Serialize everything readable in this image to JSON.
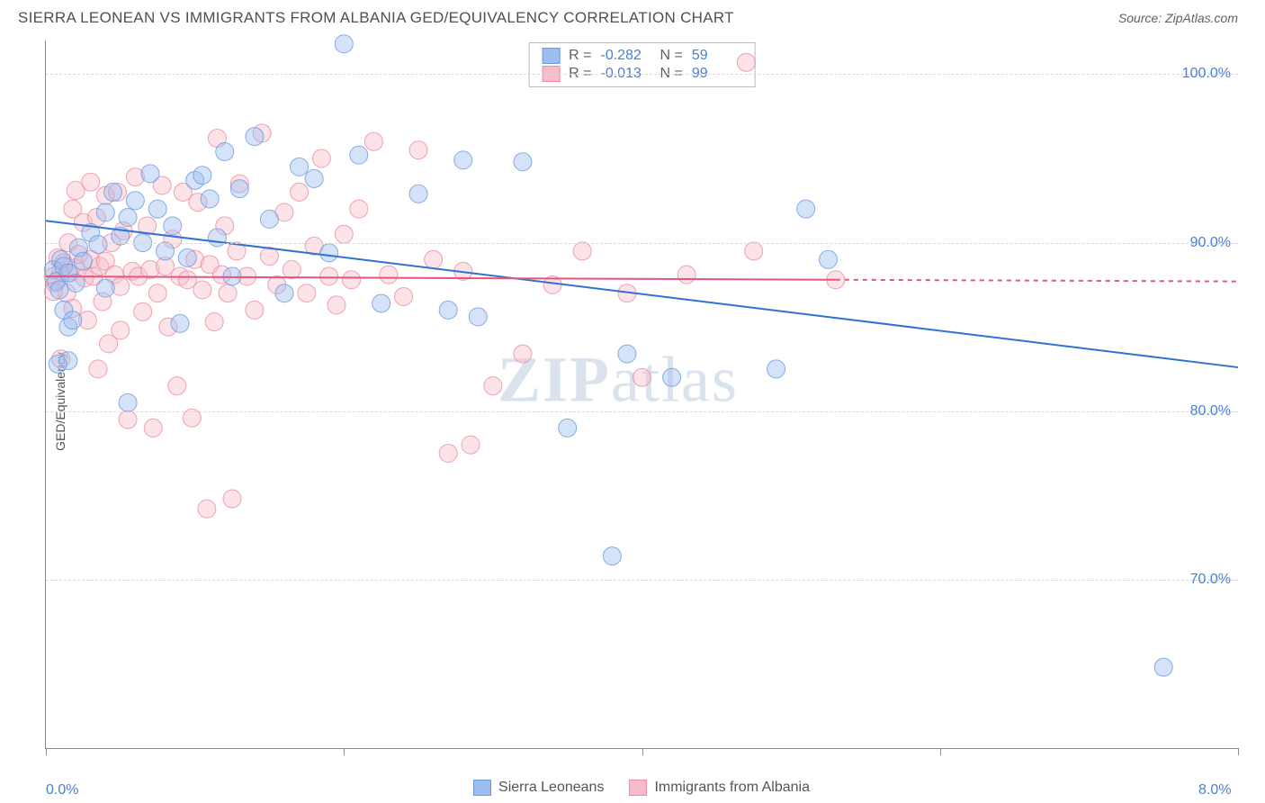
{
  "title": "SIERRA LEONEAN VS IMMIGRANTS FROM ALBANIA GED/EQUIVALENCY CORRELATION CHART",
  "source_label": "Source:",
  "source_name": "ZipAtlas.com",
  "ylabel": "GED/Equivalency",
  "watermark": "ZIPatlas",
  "chart": {
    "type": "scatter",
    "xlim": [
      0.0,
      8.0
    ],
    "ylim": [
      60.0,
      102.0
    ],
    "x_ticks": [
      0.0,
      2.0,
      4.0,
      6.0,
      8.0
    ],
    "x_tick_labels": [
      "0.0%",
      "",
      "",
      "",
      "8.0%"
    ],
    "y_ticks": [
      70.0,
      80.0,
      90.0,
      100.0
    ],
    "y_tick_labels": [
      "70.0%",
      "80.0%",
      "90.0%",
      "100.0%"
    ],
    "grid_color": "#d8d8d8",
    "axis_color": "#888888",
    "background_color": "#ffffff",
    "marker_radius": 10,
    "marker_opacity": 0.42,
    "line_width": 2,
    "series": [
      {
        "key": "sierra",
        "name": "Sierra Leoneans",
        "color_fill": "#9cbdf0",
        "color_stroke": "#6a9ae0",
        "line_color": "#2f72d4",
        "R": "-0.282",
        "N": "59",
        "trend": {
          "x1": 0.0,
          "y1": 91.3,
          "x2": 8.0,
          "y2": 82.6
        },
        "points": [
          [
            0.05,
            88.4
          ],
          [
            0.07,
            87.7
          ],
          [
            0.09,
            87.2
          ],
          [
            0.1,
            89.0
          ],
          [
            0.12,
            86.0
          ],
          [
            0.12,
            88.6
          ],
          [
            0.15,
            88.2
          ],
          [
            0.15,
            83.0
          ],
          [
            0.15,
            85.0
          ],
          [
            0.2,
            87.6
          ],
          [
            0.22,
            89.7
          ],
          [
            0.25,
            88.9
          ],
          [
            0.3,
            90.6
          ],
          [
            0.35,
            89.9
          ],
          [
            0.4,
            87.3
          ],
          [
            0.4,
            91.8
          ],
          [
            0.45,
            93.0
          ],
          [
            0.5,
            90.4
          ],
          [
            0.55,
            91.5
          ],
          [
            0.55,
            80.5
          ],
          [
            0.6,
            92.5
          ],
          [
            0.65,
            90.0
          ],
          [
            0.7,
            94.1
          ],
          [
            0.75,
            92.0
          ],
          [
            0.8,
            89.5
          ],
          [
            0.85,
            91.0
          ],
          [
            0.9,
            85.2
          ],
          [
            0.95,
            89.1
          ],
          [
            1.0,
            93.7
          ],
          [
            1.05,
            94.0
          ],
          [
            1.1,
            92.6
          ],
          [
            1.15,
            90.3
          ],
          [
            1.2,
            95.4
          ],
          [
            1.25,
            88.0
          ],
          [
            1.3,
            93.2
          ],
          [
            1.4,
            96.3
          ],
          [
            1.5,
            91.4
          ],
          [
            1.6,
            87.0
          ],
          [
            1.7,
            94.5
          ],
          [
            1.8,
            93.8
          ],
          [
            1.9,
            89.4
          ],
          [
            2.0,
            101.8
          ],
          [
            2.1,
            95.2
          ],
          [
            2.25,
            86.4
          ],
          [
            2.5,
            92.9
          ],
          [
            2.7,
            86.0
          ],
          [
            2.8,
            94.9
          ],
          [
            2.9,
            85.6
          ],
          [
            3.2,
            94.8
          ],
          [
            3.5,
            79.0
          ],
          [
            3.8,
            71.4
          ],
          [
            3.9,
            83.4
          ],
          [
            4.2,
            82.0
          ],
          [
            4.9,
            82.5
          ],
          [
            5.1,
            92.0
          ],
          [
            5.25,
            89.0
          ],
          [
            7.5,
            64.8
          ],
          [
            0.08,
            82.8
          ],
          [
            0.18,
            85.4
          ]
        ]
      },
      {
        "key": "albania",
        "name": "Immigrants from Albania",
        "color_fill": "#f6bcc9",
        "color_stroke": "#ec8ba3",
        "line_color": "#e6557e",
        "R": "-0.013",
        "N": "99",
        "trend": {
          "x1": 0.0,
          "y1": 88.0,
          "x2": 5.3,
          "y2": 87.8
        },
        "trend_dashed": {
          "x1": 5.3,
          "y1": 87.8,
          "x2": 8.0,
          "y2": 87.7
        },
        "points": [
          [
            0.05,
            88.0
          ],
          [
            0.06,
            87.6
          ],
          [
            0.08,
            89.1
          ],
          [
            0.1,
            88.3
          ],
          [
            0.1,
            83.1
          ],
          [
            0.12,
            88.8
          ],
          [
            0.14,
            87.0
          ],
          [
            0.15,
            90.0
          ],
          [
            0.16,
            88.2
          ],
          [
            0.18,
            92.0
          ],
          [
            0.18,
            86.1
          ],
          [
            0.2,
            88.5
          ],
          [
            0.2,
            93.1
          ],
          [
            0.22,
            89.3
          ],
          [
            0.25,
            91.2
          ],
          [
            0.26,
            87.9
          ],
          [
            0.28,
            85.4
          ],
          [
            0.3,
            89.0
          ],
          [
            0.3,
            93.6
          ],
          [
            0.32,
            88.0
          ],
          [
            0.34,
            91.5
          ],
          [
            0.36,
            88.6
          ],
          [
            0.38,
            86.5
          ],
          [
            0.4,
            92.8
          ],
          [
            0.4,
            88.9
          ],
          [
            0.42,
            84.0
          ],
          [
            0.44,
            90.0
          ],
          [
            0.46,
            88.1
          ],
          [
            0.48,
            93.0
          ],
          [
            0.5,
            87.4
          ],
          [
            0.5,
            84.8
          ],
          [
            0.52,
            90.7
          ],
          [
            0.55,
            79.5
          ],
          [
            0.58,
            88.3
          ],
          [
            0.6,
            93.9
          ],
          [
            0.62,
            88.0
          ],
          [
            0.65,
            85.9
          ],
          [
            0.68,
            91.0
          ],
          [
            0.7,
            88.4
          ],
          [
            0.72,
            79.0
          ],
          [
            0.75,
            87.0
          ],
          [
            0.78,
            93.4
          ],
          [
            0.8,
            88.6
          ],
          [
            0.82,
            85.0
          ],
          [
            0.85,
            90.2
          ],
          [
            0.88,
            81.5
          ],
          [
            0.9,
            88.0
          ],
          [
            0.92,
            93.0
          ],
          [
            0.95,
            87.8
          ],
          [
            0.98,
            79.6
          ],
          [
            1.0,
            89.0
          ],
          [
            1.02,
            92.4
          ],
          [
            1.05,
            87.2
          ],
          [
            1.08,
            74.2
          ],
          [
            1.1,
            88.7
          ],
          [
            1.13,
            85.3
          ],
          [
            1.15,
            96.2
          ],
          [
            1.18,
            88.1
          ],
          [
            1.2,
            91.0
          ],
          [
            1.22,
            87.0
          ],
          [
            1.25,
            74.8
          ],
          [
            1.28,
            89.5
          ],
          [
            1.3,
            93.5
          ],
          [
            1.35,
            88.0
          ],
          [
            1.4,
            86.0
          ],
          [
            1.45,
            96.5
          ],
          [
            1.5,
            89.2
          ],
          [
            1.55,
            87.5
          ],
          [
            1.6,
            91.8
          ],
          [
            1.65,
            88.4
          ],
          [
            1.7,
            93.0
          ],
          [
            1.75,
            87.0
          ],
          [
            1.8,
            89.8
          ],
          [
            1.85,
            95.0
          ],
          [
            1.9,
            88.0
          ],
          [
            1.95,
            86.3
          ],
          [
            2.0,
            90.5
          ],
          [
            2.05,
            87.8
          ],
          [
            2.1,
            92.0
          ],
          [
            2.2,
            96.0
          ],
          [
            2.3,
            88.1
          ],
          [
            2.4,
            86.8
          ],
          [
            2.5,
            95.5
          ],
          [
            2.6,
            89.0
          ],
          [
            2.7,
            77.5
          ],
          [
            2.8,
            88.3
          ],
          [
            2.85,
            78.0
          ],
          [
            3.0,
            81.5
          ],
          [
            3.2,
            83.4
          ],
          [
            3.4,
            87.5
          ],
          [
            3.6,
            89.5
          ],
          [
            3.9,
            87.0
          ],
          [
            4.0,
            82.0
          ],
          [
            4.3,
            88.1
          ],
          [
            4.7,
            100.7
          ],
          [
            4.75,
            89.5
          ],
          [
            5.3,
            87.8
          ],
          [
            0.35,
            82.5
          ],
          [
            0.05,
            87.1
          ]
        ]
      }
    ]
  },
  "legend": {
    "series1": "Sierra Leoneans",
    "series2": "Immigrants from Albania"
  },
  "stats_labels": {
    "R": "R =",
    "N": "N ="
  }
}
